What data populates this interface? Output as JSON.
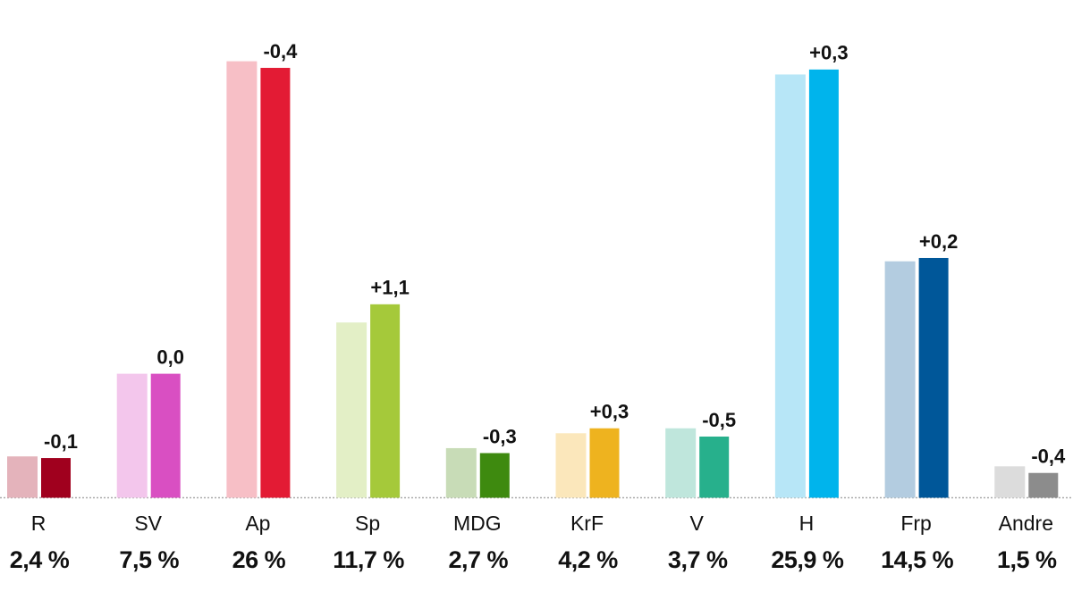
{
  "chart_data": {
    "type": "bar",
    "categories": [
      "R",
      "SV",
      "Ap",
      "Sp",
      "MDG",
      "KrF",
      "V",
      "H",
      "Frp",
      "Andre"
    ],
    "series": [
      {
        "values": [
          2.5,
          7.5,
          26.4,
          10.6,
          3.0,
          3.9,
          4.2,
          25.6,
          14.3,
          1.9
        ],
        "colors": [
          "#e4b3bb",
          "#f3c6ec",
          "#f7bfc6",
          "#e3efc6",
          "#c8dcb7",
          "#fbe7bb",
          "#bfe6dc",
          "#b7e6f7",
          "#b3cce0",
          "#dcdcdc"
        ]
      },
      {
        "values": [
          2.4,
          7.5,
          26,
          11.7,
          2.7,
          4.2,
          3.7,
          25.9,
          14.5,
          1.5
        ],
        "value_labels": [
          "2,4 %",
          "7,5 %",
          "26 %",
          "11,7 %",
          "2,7 %",
          "4,2 %",
          "3,7 %",
          "25,9 %",
          "14,5 %",
          "1,5 %"
        ],
        "colors": [
          "#a0001e",
          "#d94fc2",
          "#e31b34",
          "#a5c93a",
          "#3e8a0f",
          "#eeb31f",
          "#27b08c",
          "#00b4ec",
          "#005799",
          "#8c8c8c"
        ]
      }
    ],
    "changes": {
      "values": [
        -0.1,
        0.0,
        -0.4,
        1.1,
        -0.3,
        0.3,
        -0.5,
        0.3,
        0.2,
        -0.4
      ],
      "value_labels": [
        "-0,1",
        "0,0",
        "-0,4",
        "+1,1",
        "-0,3",
        "+0,3",
        "-0,5",
        "+0,3",
        "+0,2",
        "-0,4"
      ]
    },
    "ylim": [
      0,
      27
    ]
  }
}
